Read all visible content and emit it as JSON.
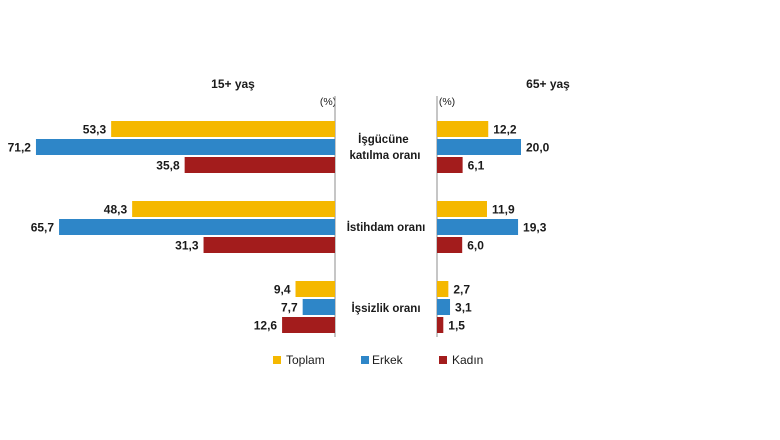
{
  "chart_data": {
    "type": "bar",
    "orientation": "horizontal",
    "categories": [
      "İşgücüne katılma oranı",
      "İstihdam oranı",
      "İşsizlik oranı"
    ],
    "category_lines": [
      [
        "İşgücüne",
        "katılma oranı"
      ],
      [
        "İstihdam oranı"
      ],
      [
        "İşsizlik oranı"
      ]
    ],
    "unit_label": "(%)",
    "colors": {
      "Toplam": "#f5b800",
      "Erkek": "#2e86c8",
      "Kadın": "#a31c1c"
    },
    "panels": [
      {
        "title": "15+ yaş",
        "series": [
          {
            "name": "Toplam",
            "values": [
              53.3,
              48.3,
              9.4
            ],
            "labels": [
              "53,3",
              "48,3",
              "9,4"
            ]
          },
          {
            "name": "Erkek",
            "values": [
              71.2,
              65.7,
              7.7
            ],
            "labels": [
              "71,2",
              "65,7",
              "7,7"
            ]
          },
          {
            "name": "Kadın",
            "values": [
              35.8,
              31.3,
              12.6
            ],
            "labels": [
              "35,8",
              "31,3",
              "12,6"
            ]
          }
        ]
      },
      {
        "title": "65+ yaş",
        "series": [
          {
            "name": "Toplam",
            "values": [
              12.2,
              11.9,
              2.7
            ],
            "labels": [
              "12,2",
              "11,9",
              "2,7"
            ]
          },
          {
            "name": "Erkek",
            "values": [
              20.0,
              19.3,
              3.1
            ],
            "labels": [
              "20,0",
              "19,3",
              "3,1"
            ]
          },
          {
            "name": "Kadın",
            "values": [
              6.1,
              6.0,
              1.5
            ],
            "labels": [
              "6,1",
              "6,0",
              "1,5"
            ]
          }
        ]
      }
    ],
    "legend": [
      "Toplam",
      "Erkek",
      "Kadın"
    ],
    "legend_position": "bottom",
    "grid": false
  }
}
